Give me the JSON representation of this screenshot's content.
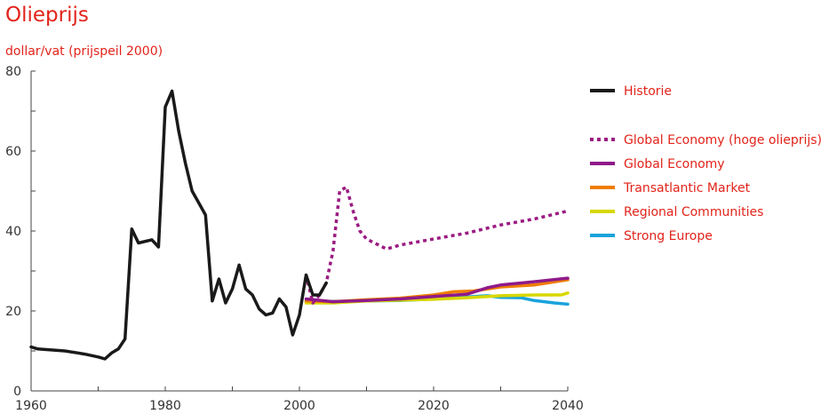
{
  "header": {
    "title": "Olieprijs",
    "subtitle": "dollar/vat (prijspeil 2000)"
  },
  "chart_data": {
    "type": "line",
    "title": "Olieprijs",
    "subtitle": "dollar/vat (prijspeil 2000)",
    "xlabel": "",
    "ylabel": "",
    "xlim": [
      1960,
      2040
    ],
    "ylim": [
      0,
      80
    ],
    "x_ticks": [
      1960,
      1980,
      2000,
      2020,
      2040
    ],
    "y_ticks": [
      0,
      20,
      40,
      60,
      80
    ],
    "grid": false,
    "legend_position": "right",
    "series": [
      {
        "name": "Historie",
        "color": "#1a1a1a",
        "style": "solid",
        "points": [
          [
            1960,
            11
          ],
          [
            1961,
            10.5
          ],
          [
            1965,
            10
          ],
          [
            1967,
            9.5
          ],
          [
            1968,
            9.2
          ],
          [
            1970,
            8.5
          ],
          [
            1971,
            8
          ],
          [
            1972,
            9.5
          ],
          [
            1973,
            10.5
          ],
          [
            1974,
            13
          ],
          [
            1975,
            40.5
          ],
          [
            1976,
            37
          ],
          [
            1978,
            37.8
          ],
          [
            1979,
            36
          ],
          [
            1980,
            71
          ],
          [
            1981,
            75
          ],
          [
            1982,
            65
          ],
          [
            1983,
            57
          ],
          [
            1984,
            50
          ],
          [
            1985,
            47
          ],
          [
            1986,
            44
          ],
          [
            1987,
            22.5
          ],
          [
            1988,
            28
          ],
          [
            1989,
            22
          ],
          [
            1990,
            25.5
          ],
          [
            1991,
            31.5
          ],
          [
            1992,
            25.5
          ],
          [
            1993,
            24
          ],
          [
            1994,
            20.5
          ],
          [
            1995,
            19
          ],
          [
            1996,
            19.5
          ],
          [
            1997,
            23
          ],
          [
            1998,
            21
          ],
          [
            1999,
            14
          ],
          [
            2000,
            19
          ],
          [
            2001,
            29
          ],
          [
            2002,
            24
          ],
          [
            2003,
            24
          ],
          [
            2004,
            27
          ]
        ]
      },
      {
        "name": "Global Economy (hoge olieprijs)",
        "color": "#9b1b81",
        "style": "dotted",
        "points": [
          [
            2001,
            29
          ],
          [
            2002,
            22
          ],
          [
            2003,
            24
          ],
          [
            2004,
            27
          ],
          [
            2005,
            35
          ],
          [
            2006,
            50
          ],
          [
            2007,
            51
          ],
          [
            2008,
            45
          ],
          [
            2009,
            40
          ],
          [
            2010,
            38
          ],
          [
            2013,
            35.5
          ],
          [
            2015,
            36.5
          ],
          [
            2020,
            38
          ],
          [
            2025,
            39.5
          ],
          [
            2030,
            41.5
          ],
          [
            2035,
            43
          ],
          [
            2040,
            45
          ]
        ]
      },
      {
        "name": "Global Economy",
        "color": "#8f1a8a",
        "style": "solid",
        "points": [
          [
            2001,
            23
          ],
          [
            2005,
            22.3
          ],
          [
            2010,
            22.6
          ],
          [
            2015,
            23
          ],
          [
            2020,
            23.6
          ],
          [
            2025,
            24.2
          ],
          [
            2028,
            25.8
          ],
          [
            2030,
            26.5
          ],
          [
            2035,
            27.3
          ],
          [
            2040,
            28.2
          ]
        ]
      },
      {
        "name": "Transatlantic Market",
        "color": "#ef7d00",
        "style": "solid",
        "points": [
          [
            2001,
            22.5
          ],
          [
            2005,
            22.3
          ],
          [
            2010,
            22.8
          ],
          [
            2015,
            23.2
          ],
          [
            2020,
            24
          ],
          [
            2023,
            24.8
          ],
          [
            2026,
            25
          ],
          [
            2030,
            26
          ],
          [
            2035,
            26.5
          ],
          [
            2040,
            27.8
          ]
        ]
      },
      {
        "name": "Regional Communities",
        "color": "#d7d700",
        "style": "solid",
        "points": [
          [
            2001,
            22
          ],
          [
            2005,
            22
          ],
          [
            2010,
            22.5
          ],
          [
            2015,
            22.7
          ],
          [
            2020,
            22.9
          ],
          [
            2025,
            23.3
          ],
          [
            2030,
            23.8
          ],
          [
            2035,
            24
          ],
          [
            2039,
            24
          ],
          [
            2040,
            24.5
          ]
        ]
      },
      {
        "name": "Strong Europe",
        "color": "#1aa3dc",
        "style": "solid",
        "points": [
          [
            2001,
            22.3
          ],
          [
            2005,
            22.4
          ],
          [
            2010,
            22.5
          ],
          [
            2015,
            22.6
          ],
          [
            2020,
            23
          ],
          [
            2025,
            23.5
          ],
          [
            2028,
            23.8
          ],
          [
            2030,
            23.4
          ],
          [
            2033,
            23.3
          ],
          [
            2035,
            22.6
          ],
          [
            2038,
            22
          ],
          [
            2040,
            21.7
          ]
        ]
      }
    ]
  }
}
